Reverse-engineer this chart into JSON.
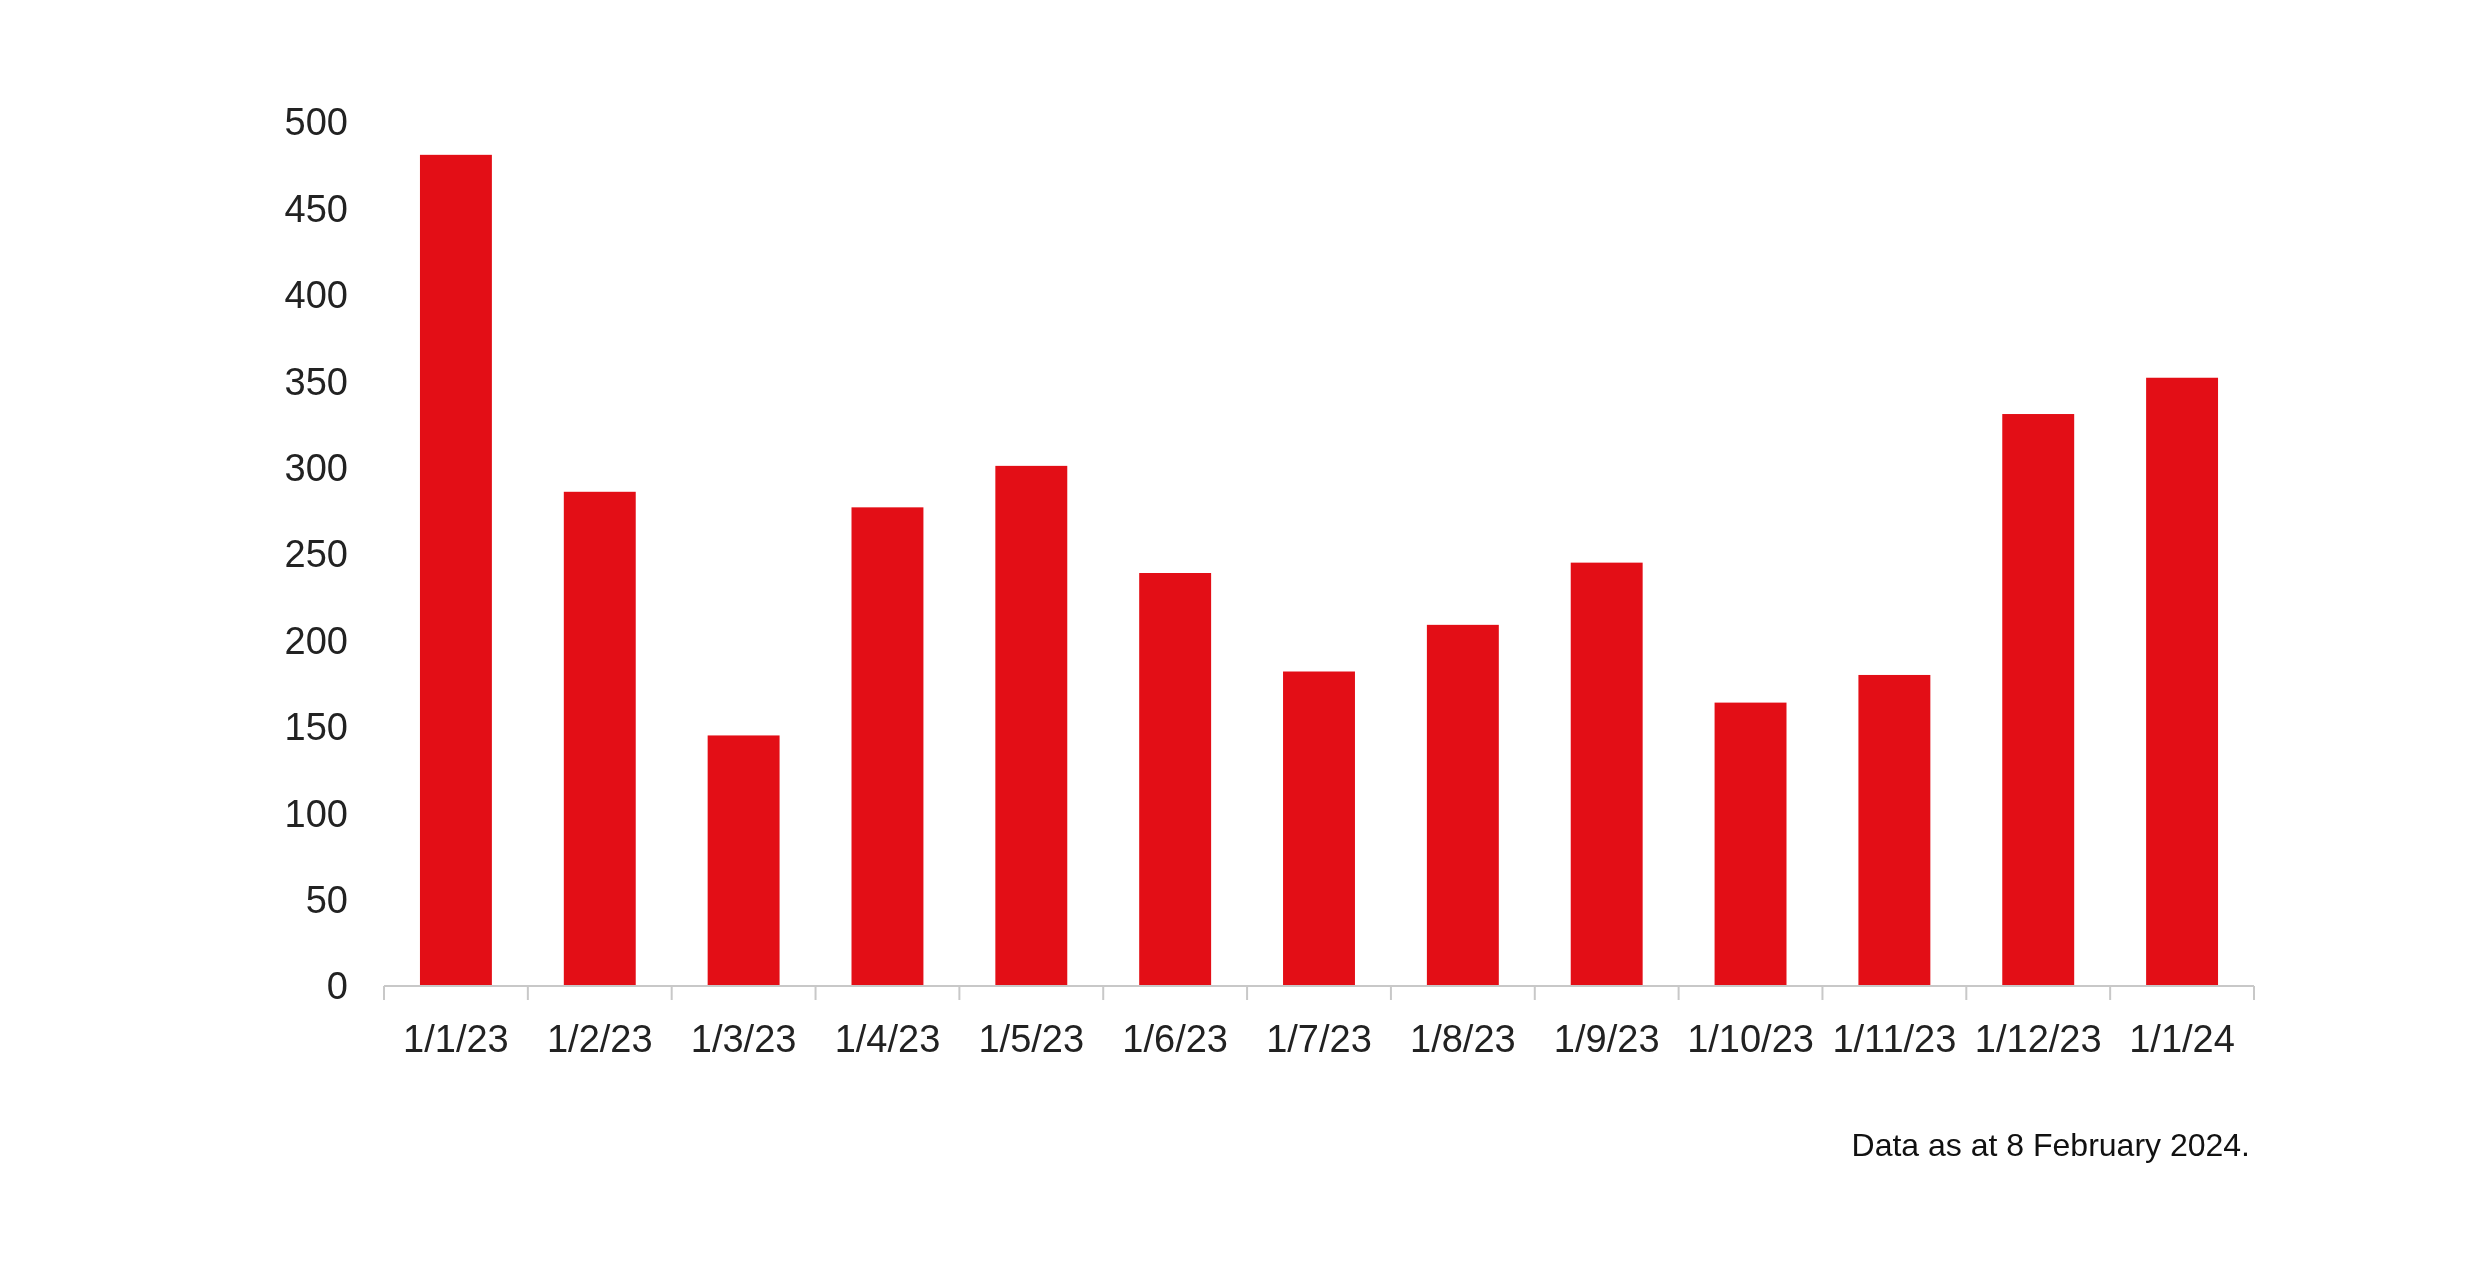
{
  "chart_data": {
    "type": "bar",
    "categories": [
      "1/1/23",
      "1/2/23",
      "1/3/23",
      "1/4/23",
      "1/5/23",
      "1/6/23",
      "1/7/23",
      "1/8/23",
      "1/9/23",
      "1/10/23",
      "1/11/23",
      "1/12/23",
      "1/1/24"
    ],
    "values": [
      481,
      286,
      145,
      277,
      301,
      239,
      182,
      209,
      245,
      164,
      180,
      331,
      352
    ],
    "color": "#e30e16",
    "ylim": [
      0,
      500
    ],
    "yticks": [
      0,
      50,
      100,
      150,
      200,
      250,
      300,
      350,
      400,
      450,
      500
    ],
    "grid": false,
    "annotations": [
      "Data as at 8 February 2024."
    ]
  }
}
